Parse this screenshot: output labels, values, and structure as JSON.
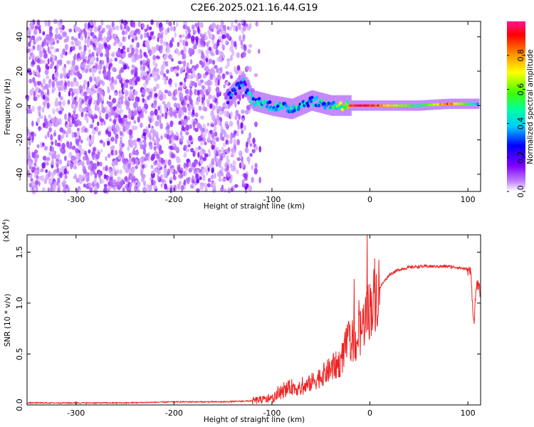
{
  "title": "C2E6.2025.021.16.44.G19",
  "chart_data": [
    {
      "type": "heatmap",
      "xlabel": "Height of straight line (km)",
      "ylabel": "Frequency (Hz)",
      "xlim": [
        -350,
        113
      ],
      "ylim": [
        -50,
        49
      ],
      "xticks": [
        -300,
        -200,
        -100,
        0,
        100
      ],
      "yticks": [
        -40,
        -20,
        0,
        20,
        40
      ],
      "colorbar": {
        "label": "Normalized spectral amplitude",
        "range": [
          0,
          1
        ],
        "ticks": [
          "0.0",
          "0.2",
          "0.4",
          "0.6",
          "0.8"
        ],
        "colors": [
          "#ffffff",
          "#8000ff",
          "#0000ff",
          "#00ffff",
          "#00ff00",
          "#ffff00",
          "#ff8000",
          "#ff0000",
          "#ff1493"
        ]
      },
      "signal_track": [
        {
          "x": -145,
          "freq": 4,
          "amp": 0.35
        },
        {
          "x": -130,
          "freq": 14,
          "amp": 0.35
        },
        {
          "x": -120,
          "freq": 3,
          "amp": 0.45
        },
        {
          "x": -100,
          "freq": 0,
          "amp": 0.5
        },
        {
          "x": -80,
          "freq": -2,
          "amp": 0.5
        },
        {
          "x": -60,
          "freq": 3,
          "amp": 0.45
        },
        {
          "x": -40,
          "freq": 0,
          "amp": 0.5
        },
        {
          "x": -20,
          "freq": 0,
          "amp": 0.95
        },
        {
          "x": 0,
          "freq": 0,
          "amp": 0.95
        },
        {
          "x": 50,
          "freq": 0,
          "amp": 0.5
        },
        {
          "x": 80,
          "freq": 1,
          "amp": 0.9
        },
        {
          "x": 110,
          "freq": 1,
          "amp": 0.4
        }
      ]
    },
    {
      "type": "line",
      "xlabel": "Height of straight line (km)",
      "ylabel": "SNR (10 * v/v)",
      "yscale_note": "(x10",
      "yscale_exp": "4",
      "xlim": [
        -350,
        113
      ],
      "ylim": [
        0,
        1.67
      ],
      "xticks": [
        -300,
        -200,
        -100,
        0,
        100
      ],
      "yticks": [
        "0.0",
        "0.5",
        "1.0",
        "1.5"
      ],
      "series": [
        {
          "color": "#ee2222",
          "x": [
            -350,
            -300,
            -250,
            -200,
            -150,
            -120,
            -100,
            -90,
            -80,
            -70,
            -60,
            -50,
            -40,
            -30,
            -25,
            -20,
            -15,
            -10,
            -5,
            0,
            5,
            10,
            15,
            20,
            30,
            40,
            50,
            60,
            70,
            80,
            90,
            100,
            103,
            106,
            109,
            113
          ],
          "y": [
            0.02,
            0.02,
            0.02,
            0.03,
            0.03,
            0.04,
            0.06,
            0.12,
            0.18,
            0.15,
            0.22,
            0.28,
            0.35,
            0.42,
            0.55,
            0.65,
            0.6,
            0.7,
            0.85,
            0.95,
            1.05,
            1.15,
            1.22,
            1.28,
            1.33,
            1.35,
            1.36,
            1.36,
            1.36,
            1.36,
            1.35,
            1.33,
            1.3,
            0.8,
            1.2,
            1.1
          ]
        }
      ]
    }
  ]
}
